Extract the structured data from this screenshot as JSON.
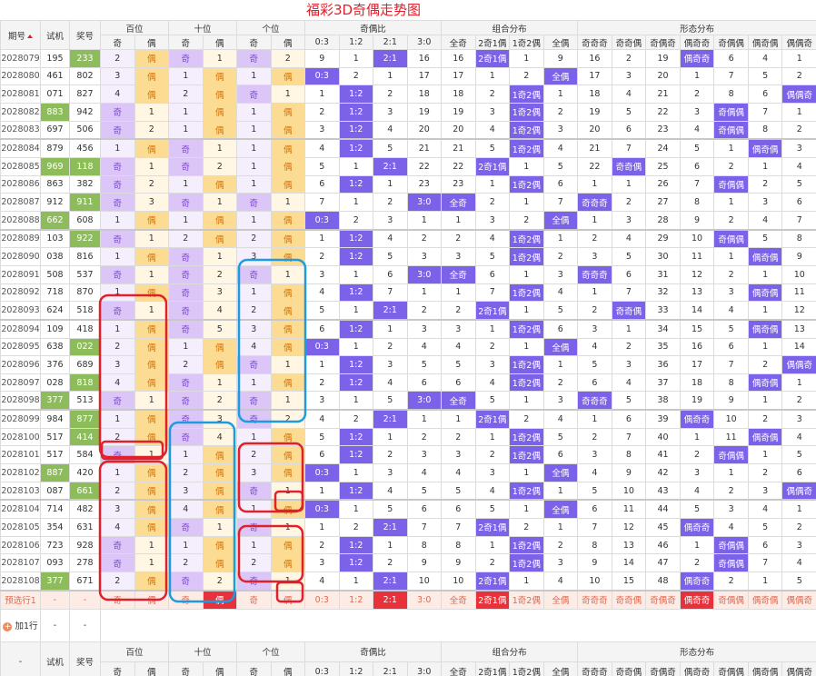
{
  "title": "福彩3D奇偶走势图",
  "columns": {
    "issue": "期号",
    "trial": "试机",
    "prize": "奖号"
  },
  "groups": [
    "百位",
    "十位",
    "个位",
    "奇偶比",
    "组合分布",
    "形态分布"
  ],
  "subheaders": [
    [
      "奇",
      "偶"
    ],
    [
      "奇",
      "偶"
    ],
    [
      "奇",
      "偶"
    ],
    [
      "0:3",
      "1:2",
      "2:1",
      "3:0"
    ],
    [
      "全奇",
      "2奇1偶",
      "1奇2偶",
      "全偶"
    ],
    [
      "奇奇奇",
      "奇奇偶",
      "奇偶奇",
      "偶奇奇",
      "奇偶偶",
      "偶奇偶",
      "偶偶奇"
    ]
  ],
  "rows": [
    [
      "2028079",
      "195",
      "233",
      2,
      "偶",
      "奇",
      1,
      "奇",
      2,
      9,
      1,
      "2:1",
      16,
      16,
      "2奇1偶",
      1,
      9,
      16,
      2,
      19,
      "偶奇奇",
      6,
      4,
      1
    ],
    [
      "2028080",
      "461",
      "802",
      3,
      "偶",
      1,
      "偶",
      1,
      "偶",
      "0:3",
      2,
      1,
      17,
      17,
      1,
      2,
      "全偶",
      17,
      3,
      20,
      1,
      7,
      5,
      2
    ],
    [
      "2028081",
      "071",
      "827",
      4,
      "偶",
      2,
      "偶",
      "奇",
      1,
      1,
      "1:2",
      2,
      18,
      18,
      2,
      "1奇2偶",
      1,
      18,
      4,
      21,
      2,
      8,
      6,
      "偶偶奇"
    ],
    [
      "2028082",
      "883",
      "942",
      "奇",
      1,
      1,
      "偶",
      1,
      "偶",
      2,
      "1:2",
      3,
      19,
      19,
      3,
      "1奇2偶",
      2,
      19,
      5,
      22,
      3,
      "奇偶偶",
      7,
      1
    ],
    [
      "2028083",
      "697",
      "506",
      "奇",
      2,
      1,
      "偶",
      1,
      "偶",
      3,
      "1:2",
      4,
      20,
      20,
      4,
      "1奇2偶",
      3,
      20,
      6,
      23,
      4,
      "奇偶偶",
      8,
      2
    ],
    [
      "2028084",
      "879",
      "456",
      1,
      "偶",
      "奇",
      1,
      1,
      "偶",
      4,
      "1:2",
      5,
      21,
      21,
      5,
      "1奇2偶",
      4,
      21,
      7,
      24,
      5,
      1,
      "偶奇偶",
      3
    ],
    [
      "2028085",
      "969",
      "118",
      "奇",
      1,
      "奇",
      2,
      1,
      "偶",
      5,
      1,
      "2:1",
      22,
      22,
      "2奇1偶",
      1,
      5,
      22,
      "奇奇偶",
      25,
      6,
      2,
      1,
      4
    ],
    [
      "2028086",
      "863",
      "382",
      "奇",
      2,
      1,
      "偶",
      1,
      "偶",
      6,
      "1:2",
      1,
      23,
      23,
      1,
      "1奇2偶",
      6,
      1,
      1,
      26,
      7,
      "奇偶偶",
      2,
      5
    ],
    [
      "2028087",
      "912",
      "911",
      "奇",
      3,
      "奇",
      1,
      "奇",
      1,
      7,
      1,
      2,
      "3:0",
      "全奇",
      2,
      1,
      7,
      "奇奇奇",
      2,
      27,
      8,
      1,
      3,
      6
    ],
    [
      "2028088",
      "662",
      "608",
      1,
      "偶",
      1,
      "偶",
      1,
      "偶",
      "0:3",
      2,
      3,
      1,
      1,
      3,
      2,
      "全偶",
      1,
      3,
      28,
      9,
      2,
      4,
      7
    ],
    [
      "2028089",
      "103",
      "922",
      "奇",
      1,
      2,
      "偶",
      2,
      "偶",
      1,
      "1:2",
      4,
      2,
      2,
      4,
      "1奇2偶",
      1,
      2,
      4,
      29,
      10,
      "奇偶偶",
      5,
      8
    ],
    [
      "2028090",
      "038",
      "816",
      1,
      "偶",
      "奇",
      1,
      3,
      "偶",
      2,
      "1:2",
      5,
      3,
      3,
      5,
      "1奇2偶",
      2,
      3,
      5,
      30,
      11,
      1,
      "偶奇偶",
      9
    ],
    [
      "2028091",
      "508",
      "537",
      "奇",
      1,
      "奇",
      2,
      "奇",
      1,
      3,
      1,
      6,
      "3:0",
      "全奇",
      6,
      1,
      3,
      "奇奇奇",
      6,
      31,
      12,
      2,
      1,
      10
    ],
    [
      "2028092",
      "718",
      "870",
      1,
      "偶",
      "奇",
      3,
      1,
      "偶",
      4,
      "1:2",
      7,
      1,
      1,
      7,
      "1奇2偶",
      4,
      1,
      7,
      32,
      13,
      3,
      "偶奇偶",
      11
    ],
    [
      "2028093",
      "624",
      "518",
      "奇",
      1,
      "奇",
      4,
      2,
      "偶",
      5,
      1,
      "2:1",
      2,
      2,
      "2奇1偶",
      1,
      5,
      2,
      "奇奇偶",
      33,
      14,
      4,
      1,
      12
    ],
    [
      "2028094",
      "109",
      "418",
      1,
      "偶",
      "奇",
      5,
      3,
      "偶",
      6,
      "1:2",
      1,
      3,
      3,
      1,
      "1奇2偶",
      6,
      3,
      1,
      34,
      15,
      5,
      "偶奇偶",
      13
    ],
    [
      "2028095",
      "638",
      "022",
      2,
      "偶",
      1,
      "偶",
      4,
      "偶",
      "0:3",
      1,
      2,
      4,
      4,
      2,
      1,
      "全偶",
      4,
      2,
      35,
      16,
      6,
      1,
      14
    ],
    [
      "2028096",
      "376",
      "689",
      3,
      "偶",
      2,
      "偶",
      "奇",
      1,
      1,
      "1:2",
      3,
      5,
      5,
      3,
      "1奇2偶",
      1,
      5,
      3,
      36,
      17,
      7,
      2,
      "偶偶奇"
    ],
    [
      "2028097",
      "028",
      "818",
      4,
      "偶",
      "奇",
      1,
      1,
      "偶",
      2,
      "1:2",
      4,
      6,
      6,
      4,
      "1奇2偶",
      2,
      6,
      4,
      37,
      18,
      8,
      "偶奇偶",
      1
    ],
    [
      "2028098",
      "377",
      "513",
      "奇",
      1,
      "奇",
      2,
      "奇",
      1,
      3,
      1,
      5,
      "3:0",
      "全奇",
      5,
      1,
      3,
      "奇奇奇",
      5,
      38,
      19,
      9,
      1,
      2
    ],
    [
      "2028099",
      "984",
      "877",
      1,
      "偶",
      "奇",
      3,
      "奇",
      2,
      4,
      2,
      "2:1",
      1,
      1,
      "2奇1偶",
      2,
      4,
      1,
      6,
      39,
      "偶奇奇",
      10,
      2,
      3
    ],
    [
      "2028100",
      "517",
      "414",
      2,
      "偶",
      "奇",
      4,
      1,
      "偶",
      5,
      "1:2",
      1,
      2,
      2,
      1,
      "1奇2偶",
      5,
      2,
      7,
      40,
      1,
      11,
      "偶奇偶",
      4
    ],
    [
      "2028101",
      "517",
      "584",
      "奇",
      1,
      1,
      "偶",
      2,
      "偶",
      6,
      "1:2",
      2,
      3,
      3,
      2,
      "1奇2偶",
      6,
      3,
      8,
      41,
      2,
      "奇偶偶",
      1,
      5
    ],
    [
      "2028102",
      "887",
      "420",
      1,
      "偶",
      2,
      "偶",
      3,
      "偶",
      "0:3",
      1,
      3,
      4,
      4,
      3,
      1,
      "全偶",
      4,
      9,
      42,
      3,
      1,
      2,
      6
    ],
    [
      "2028103",
      "087",
      "661",
      2,
      "偶",
      3,
      "偶",
      "奇",
      1,
      1,
      "1:2",
      4,
      5,
      5,
      4,
      "1奇2偶",
      1,
      5,
      10,
      43,
      4,
      2,
      3,
      "偶偶奇"
    ],
    [
      "2028104",
      "714",
      "482",
      3,
      "偶",
      4,
      "偶",
      1,
      "偶",
      "0:3",
      1,
      5,
      6,
      6,
      5,
      1,
      "全偶",
      6,
      11,
      44,
      5,
      3,
      4,
      1
    ],
    [
      "2028105",
      "354",
      "631",
      4,
      "偶",
      "奇",
      1,
      "奇",
      1,
      1,
      2,
      "2:1",
      7,
      7,
      "2奇1偶",
      2,
      1,
      7,
      12,
      45,
      "偶奇奇",
      4,
      5,
      2
    ],
    [
      "2028106",
      "723",
      "928",
      "奇",
      1,
      1,
      "偶",
      1,
      "偶",
      2,
      "1:2",
      1,
      8,
      8,
      1,
      "1奇2偶",
      2,
      8,
      13,
      46,
      1,
      "奇偶偶",
      6,
      3
    ],
    [
      "2028107",
      "093",
      "278",
      "奇",
      1,
      2,
      "偶",
      2,
      "偶",
      3,
      "1:2",
      2,
      9,
      9,
      2,
      "1奇2偶",
      3,
      9,
      14,
      47,
      2,
      "奇偶偶",
      7,
      4
    ],
    [
      "2028108",
      "377",
      "671",
      2,
      "偶",
      "奇",
      2,
      "奇",
      1,
      4,
      1,
      "2:1",
      10,
      10,
      "2奇1偶",
      1,
      4,
      10,
      15,
      48,
      "偶奇奇",
      2,
      1,
      5
    ]
  ],
  "preselect": [
    "预选行1",
    "-",
    "-",
    "奇",
    "偶",
    "奇",
    "偶",
    "奇",
    "偶",
    "0:3",
    "1:2",
    "2:1",
    "3:0",
    "全奇",
    "2奇1偶",
    "1奇2偶",
    "全偶",
    "奇奇奇",
    "奇奇偶",
    "奇偶奇",
    "偶奇奇",
    "奇偶偶",
    "偶奇偶",
    "偶偶奇"
  ],
  "add_row": {
    "label": "加1行",
    "cells": [
      "-",
      "-"
    ]
  },
  "footer_issue": "-"
}
